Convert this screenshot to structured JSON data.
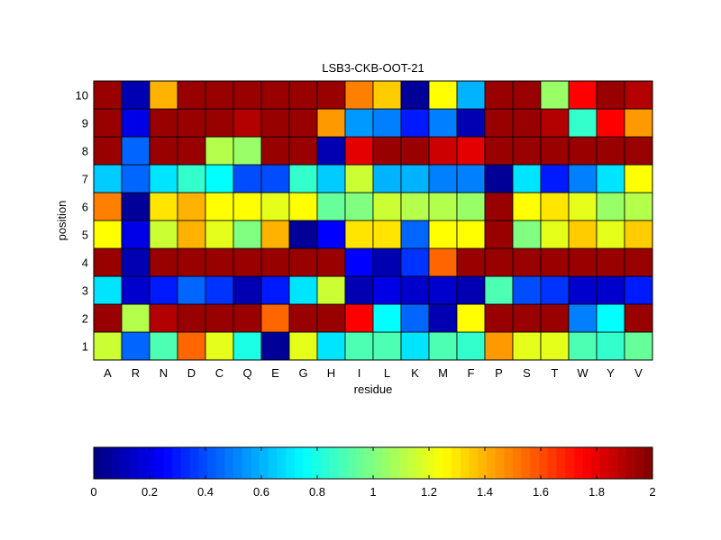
{
  "chart_data": {
    "type": "heatmap",
    "title": "LSB3-CKB-OOT-21",
    "xlabel": "residue",
    "ylabel": "position",
    "x_categories": [
      "A",
      "R",
      "N",
      "D",
      "C",
      "Q",
      "E",
      "G",
      "H",
      "I",
      "L",
      "K",
      "M",
      "F",
      "P",
      "S",
      "T",
      "W",
      "Y",
      "V"
    ],
    "y_categories": [
      "1",
      "2",
      "3",
      "4",
      "5",
      "6",
      "7",
      "8",
      "9",
      "10"
    ],
    "values": [
      [
        1.15,
        0.45,
        0.9,
        1.55,
        1.2,
        0.8,
        0.05,
        1.2,
        0.7,
        0.9,
        0.9,
        0.7,
        0.9,
        0.85,
        1.45,
        1.2,
        1.2,
        0.9,
        0.85,
        0.95
      ],
      [
        1.95,
        1.1,
        1.9,
        1.95,
        1.95,
        1.95,
        1.55,
        1.95,
        1.95,
        1.75,
        0.75,
        0.45,
        0.1,
        1.25,
        1.95,
        1.95,
        1.95,
        0.5,
        0.75,
        1.95
      ],
      [
        0.7,
        0.15,
        0.3,
        0.45,
        0.35,
        0.1,
        0.3,
        0.7,
        1.15,
        0.1,
        0.2,
        0.15,
        0.15,
        0.1,
        0.9,
        0.4,
        0.35,
        0.15,
        0.15,
        0.3
      ],
      [
        1.95,
        0.1,
        1.95,
        1.95,
        1.95,
        1.95,
        1.95,
        1.95,
        1.95,
        0.25,
        0.1,
        0.35,
        1.55,
        1.95,
        1.95,
        1.95,
        1.95,
        1.95,
        1.95,
        1.95
      ],
      [
        1.25,
        0.2,
        1.15,
        1.4,
        1.2,
        1.0,
        1.4,
        0.05,
        0.25,
        1.3,
        1.3,
        0.45,
        1.25,
        1.25,
        1.95,
        1.0,
        1.2,
        1.35,
        1.2,
        1.35
      ],
      [
        1.5,
        0.05,
        1.3,
        1.4,
        1.25,
        1.25,
        1.2,
        1.25,
        0.95,
        1.0,
        1.15,
        1.1,
        1.1,
        1.05,
        1.95,
        1.25,
        1.3,
        1.2,
        1.05,
        1.1
      ],
      [
        0.65,
        0.45,
        0.7,
        0.85,
        0.75,
        0.4,
        0.4,
        0.85,
        0.65,
        1.15,
        0.6,
        0.6,
        0.5,
        0.5,
        0.05,
        0.7,
        0.3,
        0.5,
        0.7,
        1.25
      ],
      [
        1.95,
        0.45,
        1.95,
        1.95,
        1.1,
        1.05,
        1.95,
        1.95,
        0.1,
        1.8,
        1.95,
        1.95,
        1.85,
        1.8,
        1.95,
        1.95,
        1.95,
        1.95,
        1.95,
        1.95
      ],
      [
        1.95,
        0.2,
        1.95,
        1.95,
        1.95,
        1.9,
        1.95,
        1.95,
        1.45,
        0.55,
        0.5,
        0.3,
        0.5,
        0.1,
        1.95,
        1.95,
        1.9,
        0.85,
        1.75,
        1.45
      ],
      [
        1.95,
        0.1,
        1.4,
        1.95,
        1.95,
        1.95,
        1.95,
        1.95,
        1.95,
        1.5,
        1.35,
        0.05,
        1.25,
        0.6,
        1.95,
        1.95,
        1.05,
        1.75,
        1.95,
        1.9
      ]
    ],
    "colormap": "jet",
    "color_range": [
      0,
      2
    ],
    "colorbar": {
      "orientation": "horizontal",
      "placement": "bottom",
      "ticks": [
        0,
        0.2,
        0.4,
        0.6,
        0.8,
        1,
        1.2,
        1.4,
        1.6,
        1.8,
        2
      ],
      "tick_labels": [
        "0",
        "0.2",
        "0.4",
        "0.6",
        "0.8",
        "1",
        "1.2",
        "1.4",
        "1.6",
        "1.8",
        "2"
      ]
    },
    "grid": false
  }
}
